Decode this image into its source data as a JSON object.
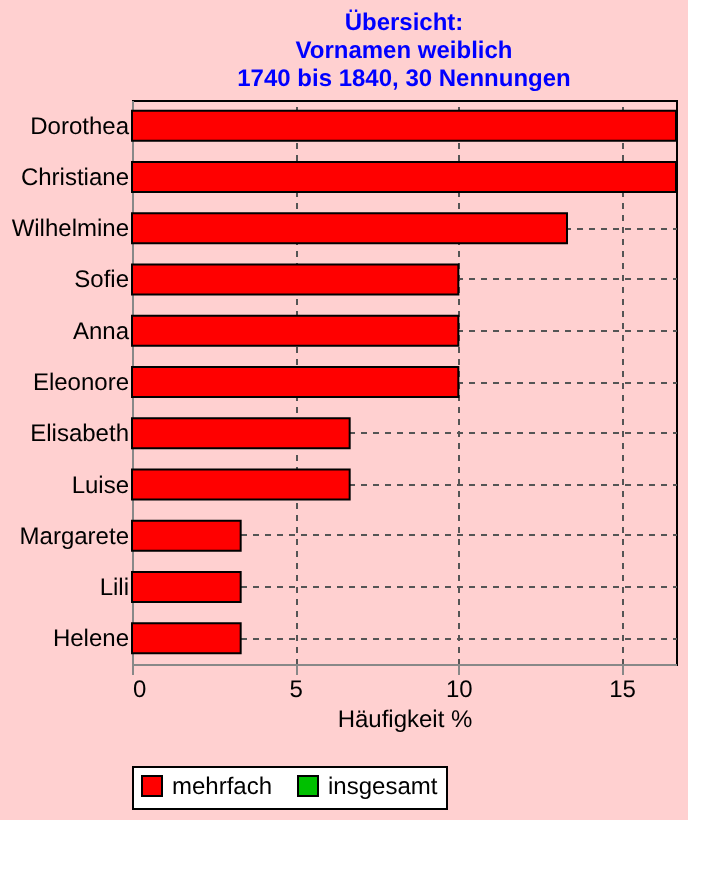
{
  "chart_data": {
    "type": "bar",
    "orientation": "horizontal",
    "title": "Übersicht:\nVornamen weiblich\n1740 bis 1840, 30 Nennungen",
    "xlabel": "Häufigkeit %",
    "categories": [
      "Dorothea",
      "Christiane",
      "Wilhelmine",
      "Sofie",
      "Anna",
      "Eleonore",
      "Elisabeth",
      "Luise",
      "Margarete",
      "Lili",
      "Helene"
    ],
    "series": [
      {
        "name": "mehrfach",
        "color": "#ff0000",
        "values": [
          16.67,
          16.67,
          13.33,
          10,
          10,
          10,
          6.67,
          6.67,
          3.33,
          3.33,
          3.33
        ]
      },
      {
        "name": "insgesamt",
        "color": "#00c000",
        "values": [
          null,
          null,
          null,
          null,
          null,
          null,
          null,
          null,
          null,
          null,
          null
        ]
      }
    ],
    "xlim": [
      0,
      16.67
    ],
    "xticks": [
      0,
      5,
      10,
      15
    ],
    "grid": true,
    "legend": "bottom"
  }
}
